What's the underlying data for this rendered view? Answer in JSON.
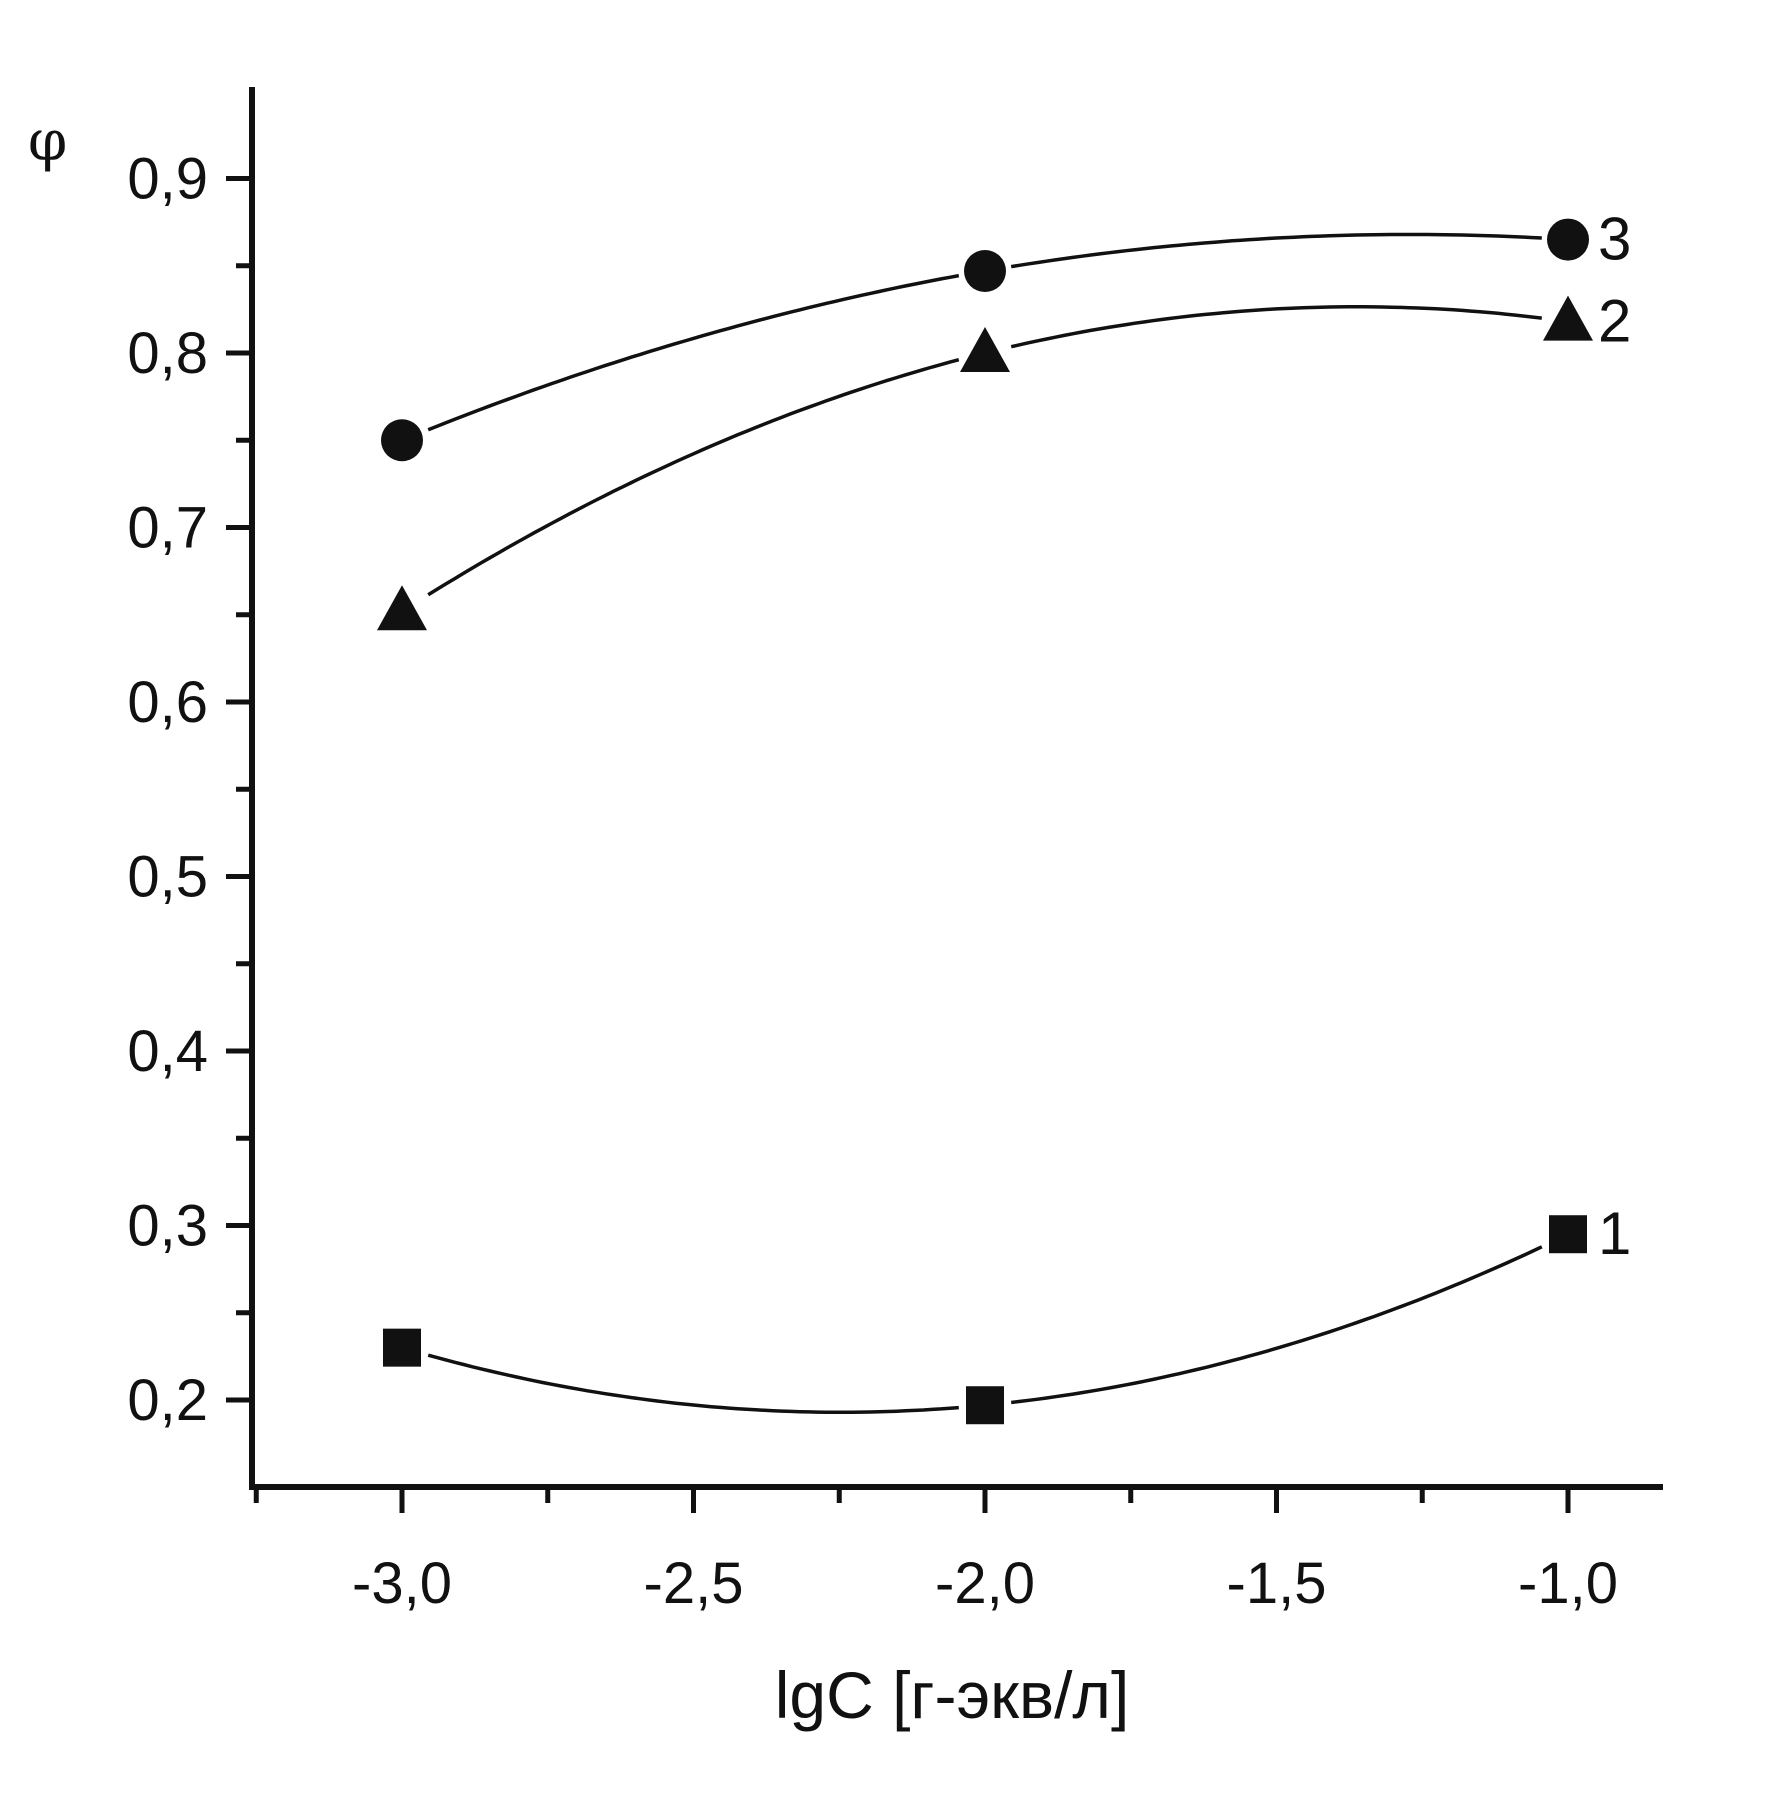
{
  "chart_data": {
    "type": "line",
    "title": "",
    "xlabel": "lgC [г-экв/л]",
    "ylabel": "φ",
    "xlim": [
      -3.25,
      -0.84
    ],
    "ylim": [
      0.15,
      0.95
    ],
    "x_ticks": [
      {
        "value": -3.0,
        "label": "-3,0"
      },
      {
        "value": -2.5,
        "label": "-2,5"
      },
      {
        "value": -2.0,
        "label": "-2,0"
      },
      {
        "value": -1.5,
        "label": "-1,5"
      },
      {
        "value": -1.0,
        "label": "-1,0"
      }
    ],
    "x_minor_ticks": [
      -3.25,
      -2.75,
      -2.25,
      -1.75,
      -1.25
    ],
    "y_ticks": [
      {
        "value": 0.2,
        "label": "0,2"
      },
      {
        "value": 0.3,
        "label": "0,3"
      },
      {
        "value": 0.4,
        "label": "0,4"
      },
      {
        "value": 0.5,
        "label": "0,5"
      },
      {
        "value": 0.6,
        "label": "0,6"
      },
      {
        "value": 0.7,
        "label": "0,7"
      },
      {
        "value": 0.8,
        "label": "0,8"
      },
      {
        "value": 0.9,
        "label": "0,9"
      }
    ],
    "y_minor_ticks": [
      0.25,
      0.35,
      0.45,
      0.55,
      0.65,
      0.75,
      0.85
    ],
    "grid": false,
    "x": [
      -3.0,
      -2.0,
      -1.0
    ],
    "series": [
      {
        "label": "1",
        "marker": "square",
        "values": [
          0.23,
          0.197,
          0.295
        ]
      },
      {
        "label": "2",
        "marker": "triangle",
        "values": [
          0.652,
          0.8,
          0.818
        ]
      },
      {
        "label": "3",
        "marker": "circle",
        "values": [
          0.75,
          0.847,
          0.865
        ]
      }
    ]
  }
}
